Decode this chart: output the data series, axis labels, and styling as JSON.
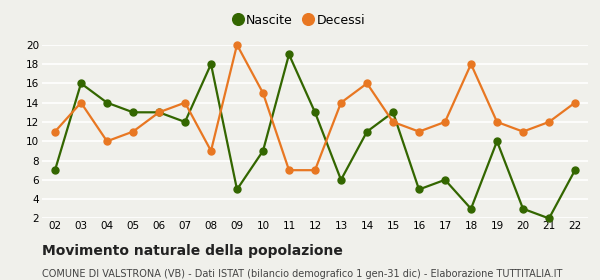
{
  "years": [
    "02",
    "03",
    "04",
    "05",
    "06",
    "07",
    "08",
    "09",
    "10",
    "11",
    "12",
    "13",
    "14",
    "15",
    "16",
    "17",
    "18",
    "19",
    "20",
    "21",
    "22"
  ],
  "nascite": [
    7,
    16,
    14,
    13,
    13,
    12,
    18,
    5,
    9,
    19,
    13,
    6,
    11,
    13,
    5,
    6,
    3,
    10,
    3,
    2,
    7
  ],
  "decessi": [
    11,
    14,
    10,
    11,
    13,
    14,
    9,
    20,
    15,
    7,
    7,
    14,
    16,
    12,
    11,
    12,
    18,
    12,
    11,
    12,
    14
  ],
  "nascite_color": "#336600",
  "decessi_color": "#E87722",
  "background_color": "#f0f0eb",
  "grid_color": "#ffffff",
  "ylim_min": 2,
  "ylim_max": 20,
  "yticks": [
    2,
    4,
    6,
    8,
    10,
    12,
    14,
    16,
    18,
    20
  ],
  "legend_nascite": "Nascite",
  "legend_decessi": "Decessi",
  "title": "Movimento naturale della popolazione",
  "subtitle": "COMUNE DI VALSTRONA (VB) - Dati ISTAT (bilancio demografico 1 gen-31 dic) - Elaborazione TUTTITALIA.IT",
  "title_fontsize": 10,
  "subtitle_fontsize": 7,
  "marker_size": 5,
  "line_width": 1.6
}
